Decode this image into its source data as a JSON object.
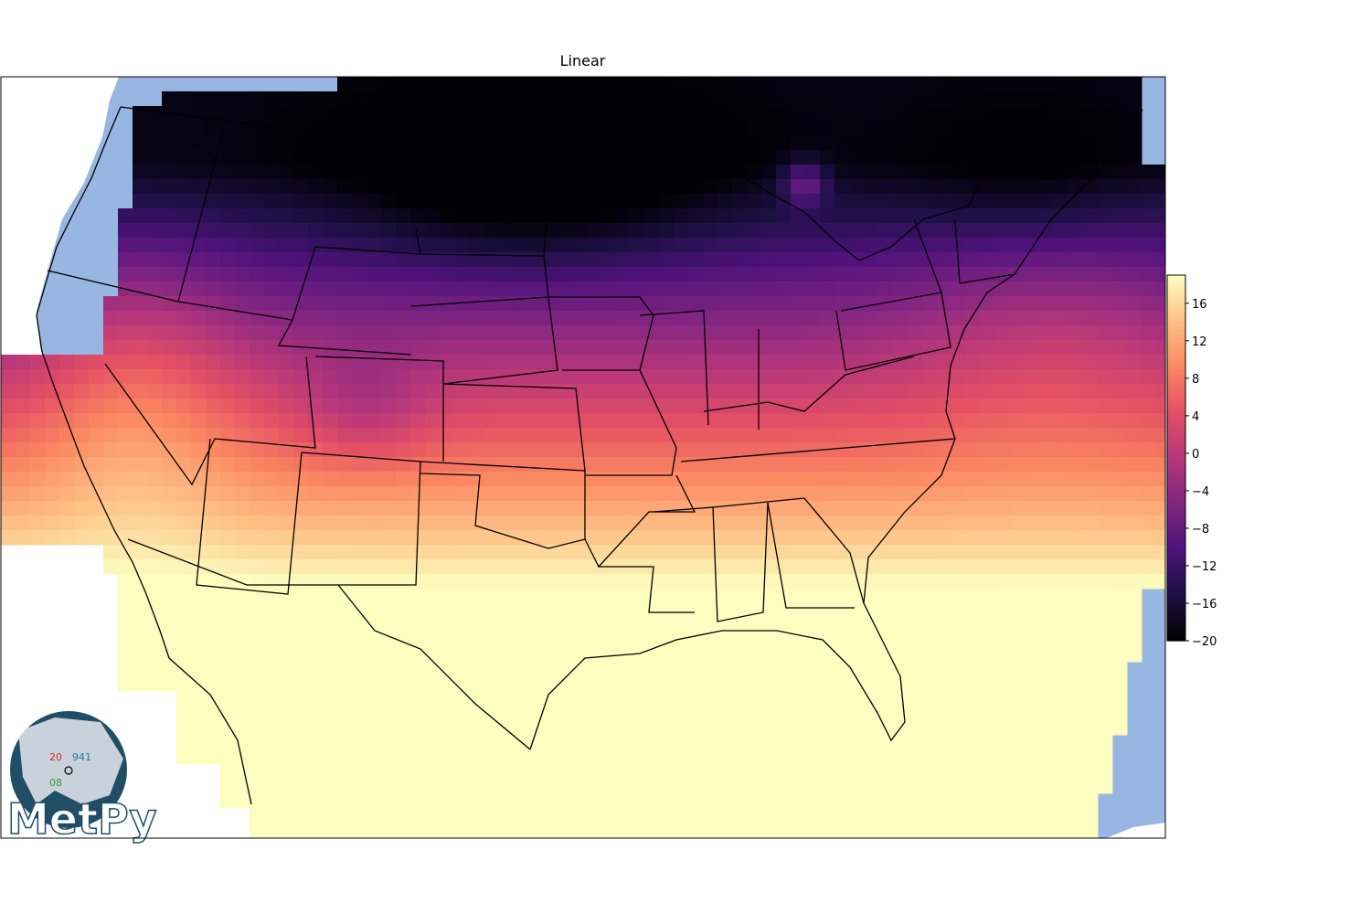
{
  "figure": {
    "title": "Linear"
  },
  "colorbar": {
    "cmap": "magma",
    "vmin": -20,
    "vmax": 19,
    "ticks": [
      -20,
      -16,
      -12,
      -8,
      -4,
      0,
      4,
      8,
      12,
      16
    ]
  },
  "colors": {
    "ocean": "#97b6e1",
    "land_outside_grid": "#ffffff",
    "borders": "#000000"
  },
  "logo": {
    "text": "MetPy",
    "station_temp": "20",
    "station_pressure": "941",
    "station_dewpoint": "08"
  },
  "chart_data": {
    "type": "heatmap",
    "title": "Linear",
    "description_of_field": "interpolated temperature grid over the contiguous United States",
    "value_range": [
      -20,
      19
    ],
    "regions": [
      {
        "region": "northern plains / upper midwest",
        "value": -19
      },
      {
        "region": "northern rockies",
        "value": -6
      },
      {
        "region": "great basin",
        "value": 2
      },
      {
        "region": "colorado rockies",
        "value": -10
      },
      {
        "region": "ohio valley",
        "value": 2
      },
      {
        "region": "new england",
        "value": -8
      },
      {
        "region": "mid-atlantic coast",
        "value": 8
      },
      {
        "region": "southern plains",
        "value": 12
      },
      {
        "region": "gulf coast",
        "value": 17
      },
      {
        "region": "florida / gulf of mexico",
        "value": 19
      },
      {
        "region": "desert southwest",
        "value": 19
      }
    ]
  }
}
